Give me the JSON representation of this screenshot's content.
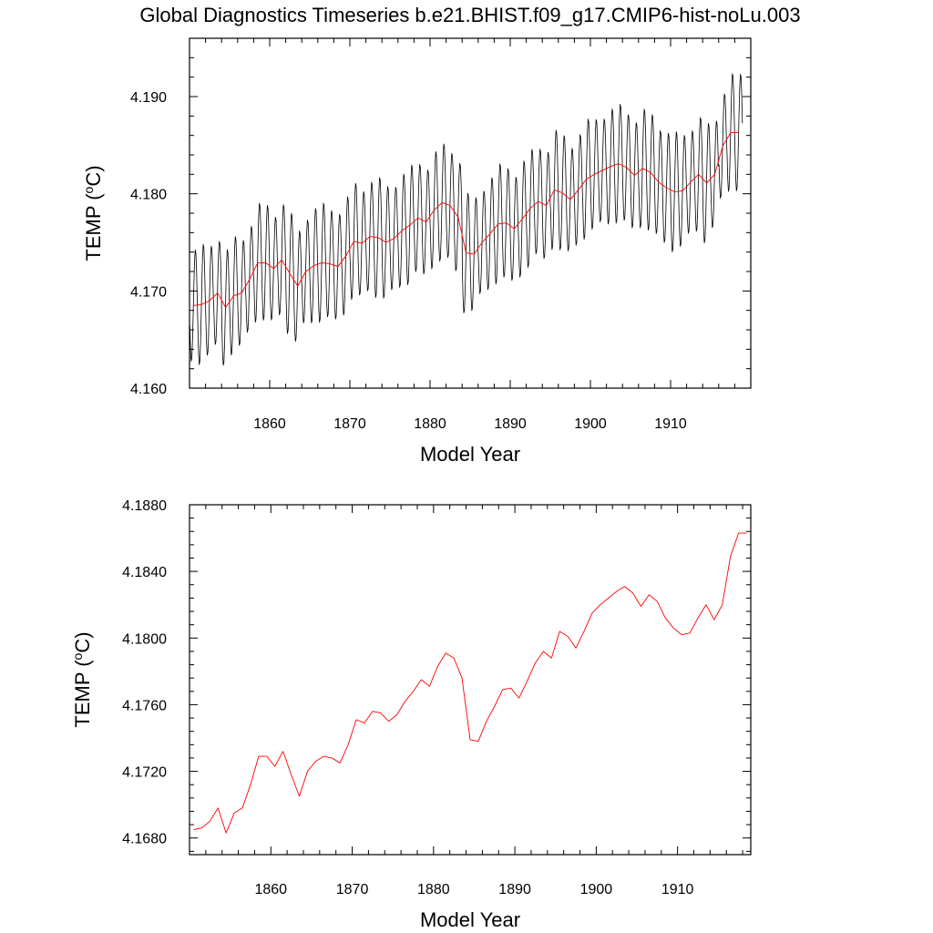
{
  "page": {
    "title": "Global Diagnostics Timeseries b.e21.BHIST.f09_g17.CMIP6-hist-noLu.003"
  },
  "colors": {
    "monthly_line": "#000000",
    "annual_line": "#ff0000",
    "axes": "#000000",
    "background": "#ffffff"
  },
  "chart_data": [
    {
      "type": "line",
      "xlabel": "Model Year",
      "ylabel": "TEMP (",
      "ylabel_sup": "o",
      "ylabel_end": "C)",
      "xlim": [
        1850,
        1920
      ],
      "ylim": [
        4.16,
        4.196
      ],
      "xticks": [
        1860,
        1870,
        1880,
        1890,
        1900,
        1910
      ],
      "xtick_labels": [
        "1860",
        "1870",
        "1880",
        "1890",
        "1900",
        "1910"
      ],
      "yticks": [
        4.16,
        4.17,
        4.18,
        4.19
      ],
      "ytick_labels": [
        "4.160",
        "4.170",
        "4.180",
        "4.190"
      ],
      "grid": false,
      "series": [
        {
          "style": "monthly",
          "color": "#000000",
          "x": [
            1850.5,
            1851.5,
            1852.5,
            1853.5,
            1854.5,
            1855.5,
            1856.5,
            1857.5,
            1858.5,
            1859.5,
            1860.5,
            1861.5,
            1862.5,
            1863.5,
            1864.5,
            1865.5,
            1866.5,
            1867.5,
            1868.5,
            1869.5,
            1870.5,
            1871.5,
            1872.5,
            1873.5,
            1874.5,
            1875.5,
            1876.5,
            1877.5,
            1878.5,
            1879.5,
            1880.5,
            1881.5,
            1882.5,
            1883.5,
            1884.5,
            1885.5,
            1886.5,
            1887.5,
            1888.5,
            1889.5,
            1890.5,
            1891.5,
            1892.5,
            1893.5,
            1894.5,
            1895.5,
            1896.5,
            1897.5,
            1898.5,
            1899.5,
            1900.5,
            1901.5,
            1902.5,
            1903.5,
            1904.5,
            1905.5,
            1906.5,
            1907.5,
            1908.5,
            1909.5,
            1910.5,
            1911.5,
            1912.5,
            1913.5,
            1914.5,
            1915.5,
            1916.5,
            1917.5,
            1918.5
          ],
          "annual_mean": [
            4.1685,
            4.1686,
            4.169,
            4.1698,
            4.1683,
            4.1695,
            4.1698,
            4.1712,
            4.1729,
            4.1729,
            4.1723,
            4.1732,
            4.1718,
            4.1705,
            4.172,
            4.1726,
            4.1729,
            4.1728,
            4.1725,
            4.1736,
            4.1751,
            4.1749,
            4.1756,
            4.1755,
            4.175,
            4.1754,
            4.1762,
            4.1768,
            4.1775,
            4.1771,
            4.1783,
            4.1791,
            4.1788,
            4.1776,
            4.1739,
            4.1738,
            4.175,
            4.1759,
            4.1769,
            4.177,
            4.1764,
            4.1774,
            4.1785,
            4.1792,
            4.1788,
            4.1804,
            4.1801,
            4.1794,
            4.1804,
            4.1815,
            4.182,
            4.1824,
            4.1828,
            4.1831,
            4.1827,
            4.1819,
            4.1826,
            4.1822,
            4.1812,
            4.1806,
            4.1802,
            4.1803,
            4.1812,
            4.182,
            4.1811,
            4.182,
            4.1849,
            4.1863,
            4.1863
          ],
          "seasonal_amplitude": 0.0058
        },
        {
          "style": "annual",
          "color": "#ff0000",
          "x": [
            1850.5,
            1851.5,
            1852.5,
            1853.5,
            1854.5,
            1855.5,
            1856.5,
            1857.5,
            1858.5,
            1859.5,
            1860.5,
            1861.5,
            1862.5,
            1863.5,
            1864.5,
            1865.5,
            1866.5,
            1867.5,
            1868.5,
            1869.5,
            1870.5,
            1871.5,
            1872.5,
            1873.5,
            1874.5,
            1875.5,
            1876.5,
            1877.5,
            1878.5,
            1879.5,
            1880.5,
            1881.5,
            1882.5,
            1883.5,
            1884.5,
            1885.5,
            1886.5,
            1887.5,
            1888.5,
            1889.5,
            1890.5,
            1891.5,
            1892.5,
            1893.5,
            1894.5,
            1895.5,
            1896.5,
            1897.5,
            1898.5,
            1899.5,
            1900.5,
            1901.5,
            1902.5,
            1903.5,
            1904.5,
            1905.5,
            1906.5,
            1907.5,
            1908.5,
            1909.5,
            1910.5,
            1911.5,
            1912.5,
            1913.5,
            1914.5,
            1915.5,
            1916.5,
            1917.5,
            1918.5
          ],
          "y": [
            4.1685,
            4.1686,
            4.169,
            4.1698,
            4.1683,
            4.1695,
            4.1698,
            4.1712,
            4.1729,
            4.1729,
            4.1723,
            4.1732,
            4.1718,
            4.1705,
            4.172,
            4.1726,
            4.1729,
            4.1728,
            4.1725,
            4.1736,
            4.1751,
            4.1749,
            4.1756,
            4.1755,
            4.175,
            4.1754,
            4.1762,
            4.1768,
            4.1775,
            4.1771,
            4.1783,
            4.1791,
            4.1788,
            4.1776,
            4.1739,
            4.1738,
            4.175,
            4.1759,
            4.1769,
            4.177,
            4.1764,
            4.1774,
            4.1785,
            4.1792,
            4.1788,
            4.1804,
            4.1801,
            4.1794,
            4.1804,
            4.1815,
            4.182,
            4.1824,
            4.1828,
            4.1831,
            4.1827,
            4.1819,
            4.1826,
            4.1822,
            4.1812,
            4.1806,
            4.1802,
            4.1803,
            4.1812,
            4.182,
            4.1811,
            4.182,
            4.1849,
            4.1863,
            4.1863
          ]
        }
      ]
    },
    {
      "type": "line",
      "xlabel": "Model Year",
      "ylabel": "TEMP (",
      "ylabel_sup": "o",
      "ylabel_end": "C)",
      "xlim": [
        1850,
        1919
      ],
      "ylim": [
        4.167,
        4.188
      ],
      "xticks": [
        1860,
        1870,
        1880,
        1890,
        1900,
        1910
      ],
      "xtick_labels": [
        "1860",
        "1870",
        "1880",
        "1890",
        "1900",
        "1910"
      ],
      "yticks": [
        4.168,
        4.172,
        4.176,
        4.18,
        4.184,
        4.188
      ],
      "ytick_labels": [
        "4.1680",
        "4.1720",
        "4.1760",
        "4.1800",
        "4.1840",
        "4.1880"
      ],
      "grid": false,
      "series": [
        {
          "style": "annual",
          "color": "#ff0000",
          "x": [
            1850.5,
            1851.5,
            1852.5,
            1853.5,
            1854.5,
            1855.5,
            1856.5,
            1857.5,
            1858.5,
            1859.5,
            1860.5,
            1861.5,
            1862.5,
            1863.5,
            1864.5,
            1865.5,
            1866.5,
            1867.5,
            1868.5,
            1869.5,
            1870.5,
            1871.5,
            1872.5,
            1873.5,
            1874.5,
            1875.5,
            1876.5,
            1877.5,
            1878.5,
            1879.5,
            1880.5,
            1881.5,
            1882.5,
            1883.5,
            1884.5,
            1885.5,
            1886.5,
            1887.5,
            1888.5,
            1889.5,
            1890.5,
            1891.5,
            1892.5,
            1893.5,
            1894.5,
            1895.5,
            1896.5,
            1897.5,
            1898.5,
            1899.5,
            1900.5,
            1901.5,
            1902.5,
            1903.5,
            1904.5,
            1905.5,
            1906.5,
            1907.5,
            1908.5,
            1909.5,
            1910.5,
            1911.5,
            1912.5,
            1913.5,
            1914.5,
            1915.5,
            1916.5,
            1917.5,
            1918.5
          ],
          "y": [
            4.1685,
            4.1686,
            4.169,
            4.1698,
            4.1683,
            4.1695,
            4.1698,
            4.1712,
            4.1729,
            4.1729,
            4.1723,
            4.1732,
            4.1718,
            4.1705,
            4.172,
            4.1726,
            4.1729,
            4.1728,
            4.1725,
            4.1736,
            4.1751,
            4.1749,
            4.1756,
            4.1755,
            4.175,
            4.1754,
            4.1762,
            4.1768,
            4.1775,
            4.1771,
            4.1783,
            4.1791,
            4.1788,
            4.1776,
            4.1739,
            4.1738,
            4.175,
            4.1759,
            4.1769,
            4.177,
            4.1764,
            4.1774,
            4.1785,
            4.1792,
            4.1788,
            4.1804,
            4.1801,
            4.1794,
            4.1804,
            4.1815,
            4.182,
            4.1824,
            4.1828,
            4.1831,
            4.1827,
            4.1819,
            4.1826,
            4.1822,
            4.1812,
            4.1806,
            4.1802,
            4.1803,
            4.1812,
            4.182,
            4.1811,
            4.182,
            4.1849,
            4.1863,
            4.1863
          ]
        }
      ]
    }
  ]
}
